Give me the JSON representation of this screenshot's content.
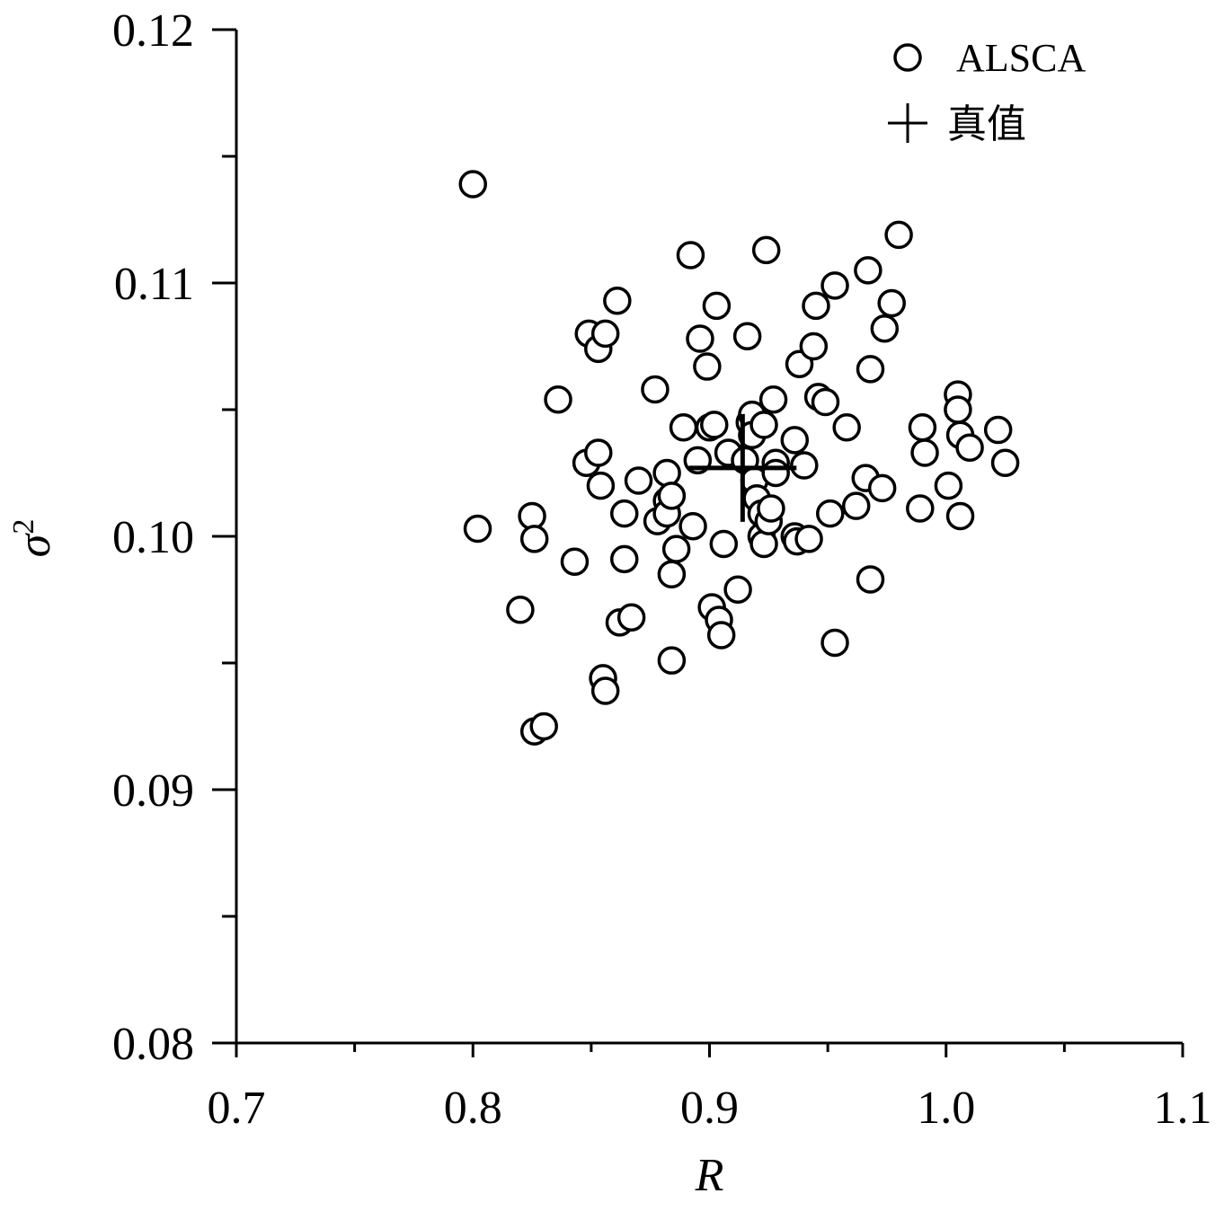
{
  "chart_data": {
    "type": "scatter",
    "title": "",
    "xlabel": "R",
    "ylabel": "σ",
    "ylabel_superscript": "2",
    "xlim": [
      0.7,
      1.1
    ],
    "ylim": [
      0.08,
      0.12
    ],
    "x_ticks": [
      0.7,
      0.8,
      0.9,
      1.0,
      1.1
    ],
    "x_tick_labels": [
      "0.7",
      "0.8",
      "0.9",
      "1.0",
      "1.1"
    ],
    "x_minor_ticks": [
      0.75,
      0.85,
      0.95,
      1.05
    ],
    "y_ticks": [
      0.08,
      0.09,
      0.1,
      0.11,
      0.12
    ],
    "y_tick_labels": [
      "0.08",
      "0.09",
      "0.10",
      "0.11",
      "0.12"
    ],
    "y_minor_ticks": [
      0.085,
      0.095,
      0.105,
      0.115
    ],
    "grid": false,
    "legend_position": "top-right",
    "legend": [
      {
        "label": "ALSCA",
        "marker": "open-circle"
      },
      {
        "label": "真值",
        "marker": "plus"
      }
    ],
    "series": [
      {
        "name": "ALSCA",
        "marker": "open-circle",
        "points": [
          [
            0.8,
            0.1139
          ],
          [
            0.802,
            0.1003
          ],
          [
            0.825,
            0.1008
          ],
          [
            0.826,
            0.0999
          ],
          [
            0.82,
            0.0971
          ],
          [
            0.826,
            0.0923
          ],
          [
            0.83,
            0.0925
          ],
          [
            0.836,
            0.1054
          ],
          [
            0.843,
            0.099
          ],
          [
            0.848,
            0.1029
          ],
          [
            0.849,
            0.108
          ],
          [
            0.853,
            0.1033
          ],
          [
            0.853,
            0.1074
          ],
          [
            0.854,
            0.102
          ],
          [
            0.855,
            0.0944
          ],
          [
            0.856,
            0.0939
          ],
          [
            0.856,
            0.108
          ],
          [
            0.861,
            0.1093
          ],
          [
            0.862,
            0.0966
          ],
          [
            0.864,
            0.1009
          ],
          [
            0.864,
            0.0991
          ],
          [
            0.867,
            0.0968
          ],
          [
            0.87,
            0.1022
          ],
          [
            0.877,
            0.1058
          ],
          [
            0.878,
            0.1006
          ],
          [
            0.882,
            0.1025
          ],
          [
            0.882,
            0.1014
          ],
          [
            0.882,
            0.1009
          ],
          [
            0.884,
            0.1016
          ],
          [
            0.884,
            0.0985
          ],
          [
            0.884,
            0.0951
          ],
          [
            0.886,
            0.0995
          ],
          [
            0.889,
            0.1043
          ],
          [
            0.892,
            0.1111
          ],
          [
            0.893,
            0.1004
          ],
          [
            0.895,
            0.103
          ],
          [
            0.896,
            0.1078
          ],
          [
            0.899,
            0.1067
          ],
          [
            0.9,
            0.1043
          ],
          [
            0.901,
            0.0972
          ],
          [
            0.902,
            0.1044
          ],
          [
            0.903,
            0.1091
          ],
          [
            0.904,
            0.0967
          ],
          [
            0.905,
            0.0961
          ],
          [
            0.906,
            0.0997
          ],
          [
            0.908,
            0.1033
          ],
          [
            0.912,
            0.0979
          ],
          [
            0.915,
            0.103
          ],
          [
            0.916,
            0.1079
          ],
          [
            0.917,
            0.1045
          ],
          [
            0.918,
            0.1048
          ],
          [
            0.918,
            0.104
          ],
          [
            0.919,
            0.1022
          ],
          [
            0.92,
            0.1015
          ],
          [
            0.922,
            0.1009
          ],
          [
            0.922,
            0.1
          ],
          [
            0.923,
            0.1044
          ],
          [
            0.923,
            0.0997
          ],
          [
            0.924,
            0.1113
          ],
          [
            0.925,
            0.1006
          ],
          [
            0.926,
            0.1011
          ],
          [
            0.927,
            0.1054
          ],
          [
            0.928,
            0.1029
          ],
          [
            0.928,
            0.1025
          ],
          [
            0.936,
            0.1038
          ],
          [
            0.936,
            0.1
          ],
          [
            0.937,
            0.0998
          ],
          [
            0.938,
            0.1068
          ],
          [
            0.94,
            0.1028
          ],
          [
            0.942,
            0.0999
          ],
          [
            0.944,
            0.1075
          ],
          [
            0.945,
            0.1091
          ],
          [
            0.946,
            0.1055
          ],
          [
            0.949,
            0.1053
          ],
          [
            0.951,
            0.1009
          ],
          [
            0.953,
            0.1099
          ],
          [
            0.953,
            0.0958
          ],
          [
            0.958,
            0.1043
          ],
          [
            0.962,
            0.1012
          ],
          [
            0.966,
            0.1023
          ],
          [
            0.967,
            0.1105
          ],
          [
            0.968,
            0.1066
          ],
          [
            0.968,
            0.0983
          ],
          [
            0.973,
            0.1019
          ],
          [
            0.974,
            0.1082
          ],
          [
            0.977,
            0.1092
          ],
          [
            0.98,
            0.1119
          ],
          [
            0.989,
            0.1011
          ],
          [
            0.99,
            0.1043
          ],
          [
            0.991,
            0.1033
          ],
          [
            1.001,
            0.102
          ],
          [
            1.005,
            0.1056
          ],
          [
            1.005,
            0.105
          ],
          [
            1.006,
            0.104
          ],
          [
            1.006,
            0.1008
          ],
          [
            1.01,
            0.1035
          ],
          [
            1.022,
            0.1042
          ],
          [
            1.025,
            0.1029
          ]
        ]
      },
      {
        "name": "真值",
        "marker": "plus",
        "points": [
          [
            0.914,
            0.1027
          ]
        ]
      }
    ]
  }
}
